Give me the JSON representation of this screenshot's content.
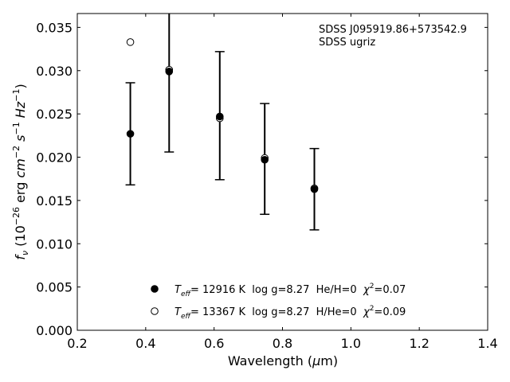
{
  "chart_data": {
    "type": "scatter",
    "xlabel": "Wavelength (μm)",
    "ylabel": "f_ν (10^-26 erg cm^-2 s^-1 Hz^-1)",
    "xlim": [
      0.2,
      1.4
    ],
    "ylim": [
      0.0,
      0.0366
    ],
    "x_ticks": [
      "0.2",
      "0.4",
      "0.6",
      "0.8",
      "1.0",
      "1.2",
      "1.4"
    ],
    "y_ticks": [
      "0.000",
      "0.005",
      "0.010",
      "0.015",
      "0.020",
      "0.025",
      "0.030",
      "0.035"
    ],
    "annotations": [
      "SDSS J095919.86+573542.9",
      "SDSS ugriz"
    ],
    "grid": false,
    "legend_placement": "bottom-center",
    "observed": {
      "x": [
        0.3551,
        0.4686,
        0.6166,
        0.748,
        0.8932
      ],
      "y": [
        0.0227,
        0.0298,
        0.0248,
        0.0198,
        0.0163
      ],
      "yerr": [
        0.0059,
        0.0092,
        0.0074,
        0.0064,
        0.0047
      ]
    },
    "series": [
      {
        "name": "T_eff= 12916 K  log g=8.27  He/H=0  χ²=0.07",
        "marker": "filled-circle",
        "x": [
          0.3551,
          0.4686,
          0.6166,
          0.748,
          0.8932
        ],
        "y": [
          0.0227,
          0.0299,
          0.0247,
          0.0197,
          0.0163
        ]
      },
      {
        "name": "T_eff= 13367 K  log g=8.27  H/He=0  χ²=0.09",
        "marker": "open-circle",
        "x": [
          0.3551,
          0.4686,
          0.6166,
          0.748,
          0.8932
        ],
        "y": [
          0.0333,
          0.0301,
          0.0245,
          0.0199,
          0.0164
        ]
      }
    ],
    "legend": [
      {
        "teff": "= 12916 K",
        "rest": "  log g=8.27  He/H=0  ",
        "chi": "=0.07"
      },
      {
        "teff": "= 13367 K",
        "rest": "  log g=8.27  H/He=0  ",
        "chi": "=0.09"
      }
    ]
  }
}
